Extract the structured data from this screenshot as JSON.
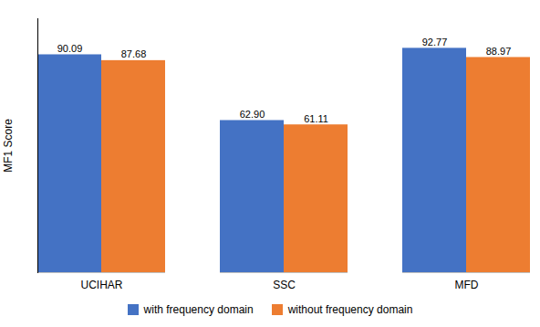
{
  "chart_data": {
    "type": "bar",
    "categories": [
      "UCIHAR",
      "SSC",
      "MFD"
    ],
    "series": [
      {
        "name": "with frequency domain",
        "color": "#4472C4",
        "values": [
          90.09,
          62.9,
          92.77
        ],
        "value_labels": [
          "90.09",
          "62.90",
          "92.77"
        ]
      },
      {
        "name": "without frequency domain",
        "color": "#ED7D31",
        "values": [
          87.68,
          61.11,
          88.97
        ],
        "value_labels": [
          "87.68",
          "61.11",
          "88.97"
        ]
      }
    ],
    "ylabel": "MF1 Score",
    "ylim": [
      0,
      105
    ],
    "data_labels": true,
    "tick_labels": "x",
    "grid": false,
    "legend": "bottom"
  }
}
